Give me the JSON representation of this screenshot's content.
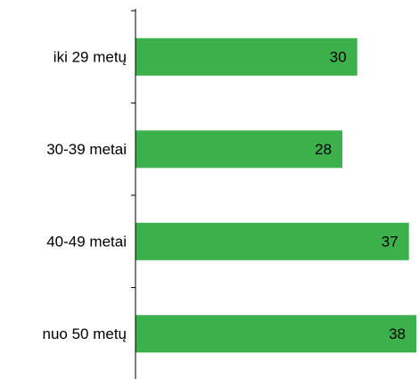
{
  "chart_data": {
    "type": "bar",
    "orientation": "horizontal",
    "categories": [
      "iki 29 metų",
      "30-39 metai",
      "40-49 metai",
      "nuo 50 metų"
    ],
    "values": [
      30,
      28,
      37,
      38
    ],
    "title": "",
    "xlabel": "",
    "ylabel": "",
    "xlim": [
      0,
      38
    ],
    "grid": false,
    "legend": "none",
    "data_labels": true
  },
  "colors": {
    "bar": "#3cb04a",
    "axis": "#000000",
    "text": "#000000"
  }
}
